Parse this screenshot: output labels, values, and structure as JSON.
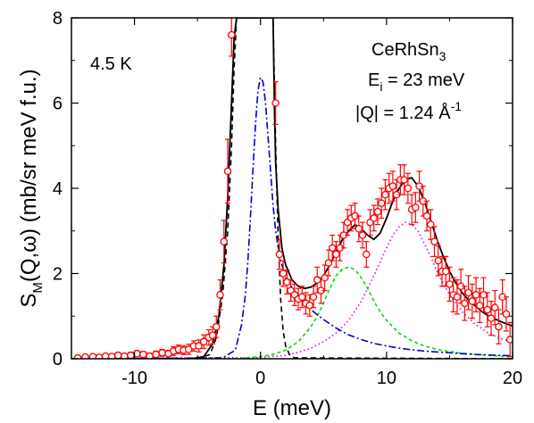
{
  "chart_data": {
    "type": "scatter",
    "xlabel": "E (meV)",
    "ylabel": {
      "main": "S",
      "sub": "M",
      "rest": "(Q,ω) (mb/sr meV f.u.)"
    },
    "xlim": [
      -15,
      20
    ],
    "ylim": [
      0,
      8
    ],
    "x_ticks": [
      -10,
      0,
      10,
      20
    ],
    "y_ticks": [
      0,
      2,
      4,
      6,
      8
    ],
    "grid": false,
    "annotations": {
      "temperature": "4.5 K",
      "compound": {
        "main": "CeRhSn",
        "sub": "3"
      },
      "ei": {
        "main": "E",
        "sub": "i",
        "rest": " = 23 meV"
      },
      "q": {
        "main": "|Q| =  1.24 Å",
        "sup": "-1"
      }
    },
    "colors": {
      "data": "#ff0000",
      "total": "#000000",
      "elastic": "#000000",
      "quasielastic": "#0000cc",
      "cef_1": "#00dd00",
      "cef_2": "#dd00dd"
    },
    "series": [
      {
        "kind": "data",
        "x": [
          -14.5,
          -13.9,
          -13.3,
          -12.8,
          -12.3,
          -11.8,
          -11.3,
          -10.8,
          -10.3,
          -9.8,
          -9.3,
          -8.8,
          -8.3,
          -7.8,
          -7.3,
          -6.9,
          -6.5,
          -6.1,
          -5.7,
          -5.3,
          -4.9,
          -4.5,
          -4.1,
          -3.8,
          -3.5,
          -3.2,
          -2.9,
          -2.6,
          -2.3,
          1.2,
          1.5,
          1.8,
          2.1,
          2.4,
          2.7,
          3.0,
          3.3,
          3.6,
          3.9,
          4.2,
          4.5,
          4.8,
          5.1,
          5.4,
          5.7,
          6.0,
          6.3,
          6.6,
          6.9,
          7.2,
          7.5,
          7.8,
          8.1,
          8.4,
          8.7,
          9.0,
          9.3,
          9.6,
          9.9,
          10.2,
          10.5,
          10.8,
          11.1,
          11.4,
          11.7,
          12.0,
          12.3,
          12.6,
          12.9,
          13.2,
          13.5,
          13.8,
          14.1,
          14.4,
          14.7,
          15.0,
          15.3,
          15.6,
          15.9,
          16.2,
          16.5,
          16.8,
          17.1,
          17.4,
          17.7,
          18.0,
          18.3,
          18.6,
          18.9,
          19.2,
          19.5,
          19.8
        ],
        "y": [
          0.02,
          0.04,
          0.05,
          0.03,
          0.06,
          0.05,
          0.08,
          0.06,
          0.08,
          0.12,
          0.1,
          0.06,
          0.1,
          0.14,
          0.12,
          0.18,
          0.22,
          0.2,
          0.22,
          0.3,
          0.3,
          0.4,
          0.5,
          0.55,
          0.75,
          1.5,
          2.75,
          4.4,
          7.6,
          6.0,
          2.45,
          2.0,
          1.8,
          1.6,
          1.5,
          1.4,
          1.45,
          1.3,
          1.25,
          1.45,
          1.85,
          1.6,
          1.9,
          2.25,
          2.6,
          2.45,
          2.6,
          2.9,
          3.2,
          3.3,
          3.35,
          3.05,
          2.9,
          2.45,
          3.2,
          3.3,
          3.45,
          3.65,
          3.85,
          4.0,
          4.05,
          3.85,
          4.2,
          4.2,
          4.0,
          3.5,
          3.55,
          4.05,
          3.7,
          3.35,
          3.15,
          2.75,
          2.3,
          2.05,
          2.05,
          1.75,
          1.5,
          1.45,
          1.7,
          1.3,
          1.55,
          1.35,
          1.5,
          1.25,
          1.5,
          1.15,
          0.95,
          1.2,
          0.75,
          1.45,
          1.05,
          0.45
        ],
        "err": [
          0.05,
          0.05,
          0.05,
          0.05,
          0.06,
          0.06,
          0.06,
          0.06,
          0.07,
          0.07,
          0.07,
          0.07,
          0.08,
          0.08,
          0.08,
          0.1,
          0.1,
          0.1,
          0.12,
          0.12,
          0.14,
          0.16,
          0.18,
          0.2,
          0.25,
          0.35,
          0.5,
          0.75,
          0.5,
          0.5,
          0.35,
          0.3,
          0.28,
          0.25,
          0.25,
          0.25,
          0.25,
          0.25,
          0.25,
          0.25,
          0.3,
          0.3,
          0.3,
          0.3,
          0.3,
          0.3,
          0.3,
          0.3,
          0.3,
          0.3,
          0.3,
          0.3,
          0.3,
          0.3,
          0.3,
          0.3,
          0.3,
          0.35,
          0.35,
          0.35,
          0.35,
          0.35,
          0.35,
          0.35,
          0.35,
          0.35,
          0.35,
          0.35,
          0.35,
          0.35,
          0.35,
          0.35,
          0.35,
          0.35,
          0.35,
          0.4,
          0.4,
          0.4,
          0.4,
          0.4,
          0.4,
          0.4,
          0.4,
          0.4,
          0.4,
          0.4,
          0.4,
          0.4,
          0.4,
          0.4,
          0.4,
          0.4
        ]
      },
      {
        "kind": "total",
        "x": [
          -15,
          -5.5,
          -4.5,
          -3.8,
          -3.3,
          -2.9,
          -2.6,
          -2.3,
          -2.1,
          -1.9,
          1.0,
          1.1,
          1.2,
          1.4,
          1.7,
          2.0,
          2.5,
          3.0,
          3.5,
          4.0,
          4.5,
          5.0,
          5.5,
          6.0,
          6.5,
          7.0,
          7.5,
          8.0,
          8.5,
          9.0,
          9.5,
          10.0,
          10.5,
          11.0,
          11.5,
          12.0,
          12.5,
          13.0,
          13.5,
          14.0,
          14.5,
          15.0,
          15.5,
          16.0,
          16.5,
          17.0,
          17.5,
          18.0,
          18.5,
          19.0,
          19.5,
          20.0
        ],
        "y": [
          0,
          0,
          0.05,
          0.35,
          1.0,
          2.2,
          3.8,
          6.0,
          7.5,
          8.0,
          8.0,
          6.0,
          4.6,
          3.5,
          2.6,
          2.2,
          1.85,
          1.7,
          1.65,
          1.68,
          1.78,
          1.95,
          2.2,
          2.5,
          2.8,
          3.0,
          3.15,
          3.05,
          2.9,
          2.8,
          2.95,
          3.3,
          3.7,
          4.0,
          4.2,
          4.25,
          4.05,
          3.7,
          3.25,
          2.8,
          2.4,
          2.05,
          1.78,
          1.55,
          1.38,
          1.25,
          1.12,
          1.02,
          0.95,
          0.88,
          0.82,
          0.77
        ]
      },
      {
        "kind": "elastic",
        "x": [
          -15,
          -5.0,
          -4.0,
          -3.5,
          -3.0,
          -2.6,
          -2.3,
          -2.1,
          -1.9,
          1.0,
          1.2,
          1.4,
          1.6,
          1.8,
          2.0,
          2.3,
          2.7,
          20
        ],
        "y": [
          0,
          0,
          0.1,
          0.5,
          1.5,
          3.0,
          5.0,
          6.8,
          8.0,
          8.0,
          5.0,
          2.8,
          1.4,
          0.65,
          0.3,
          0.1,
          0.02,
          0
        ]
      },
      {
        "kind": "quasielastic",
        "x": [
          -15,
          -3.0,
          -2.0,
          -1.5,
          -1.2,
          -1.0,
          -0.8,
          -0.6,
          -0.4,
          -0.2,
          0.0,
          0.2,
          0.4,
          0.6,
          0.8,
          1.0,
          1.2,
          1.5,
          2.0,
          3.0,
          4.0,
          5.0,
          6.0,
          7.0,
          8.0,
          9.0,
          10.0,
          11.0,
          12.0,
          13.0,
          14.0,
          15.0,
          16.0,
          17.0,
          18.0,
          19.0,
          20.0
        ],
        "y": [
          0,
          0.02,
          0.2,
          0.8,
          1.5,
          2.3,
          3.3,
          4.4,
          5.5,
          6.3,
          6.6,
          6.5,
          6.0,
          5.2,
          4.4,
          3.6,
          3.0,
          2.4,
          1.9,
          1.45,
          1.15,
          0.92,
          0.72,
          0.56,
          0.45,
          0.36,
          0.3,
          0.25,
          0.21,
          0.18,
          0.16,
          0.14,
          0.12,
          0.1,
          0.09,
          0.08,
          0.07
        ]
      },
      {
        "kind": "cef_1",
        "x": [
          -15,
          -2,
          0,
          1.0,
          2.0,
          3.0,
          4.0,
          4.5,
          5.0,
          5.5,
          6.0,
          6.5,
          7.0,
          7.3,
          7.6,
          8.0,
          8.5,
          9.0,
          9.5,
          10.0,
          11.0,
          12.0,
          13.0,
          14.0,
          15.0,
          16.0,
          17.0,
          18.0,
          19.0,
          20.0
        ],
        "y": [
          0,
          0,
          0.05,
          0.1,
          0.2,
          0.4,
          0.75,
          1.0,
          1.3,
          1.65,
          1.95,
          2.1,
          2.15,
          2.12,
          2.05,
          1.9,
          1.65,
          1.35,
          1.1,
          0.9,
          0.6,
          0.42,
          0.3,
          0.22,
          0.17,
          0.13,
          0.1,
          0.08,
          0.06,
          0.05
        ]
      },
      {
        "kind": "cef_2",
        "x": [
          -15,
          0,
          2.0,
          3.0,
          4.0,
          5.0,
          6.0,
          7.0,
          8.0,
          9.0,
          10.0,
          10.5,
          11.0,
          11.5,
          12.0,
          12.5,
          13.0,
          13.5,
          14.0,
          15.0,
          16.0,
          17.0,
          18.0,
          19.0,
          20.0
        ],
        "y": [
          0,
          0.03,
          0.08,
          0.15,
          0.25,
          0.4,
          0.6,
          0.9,
          1.35,
          1.95,
          2.6,
          2.9,
          3.1,
          3.2,
          3.15,
          3.0,
          2.7,
          2.4,
          2.05,
          1.5,
          1.1,
          0.82,
          0.62,
          0.48,
          0.38
        ]
      }
    ]
  }
}
